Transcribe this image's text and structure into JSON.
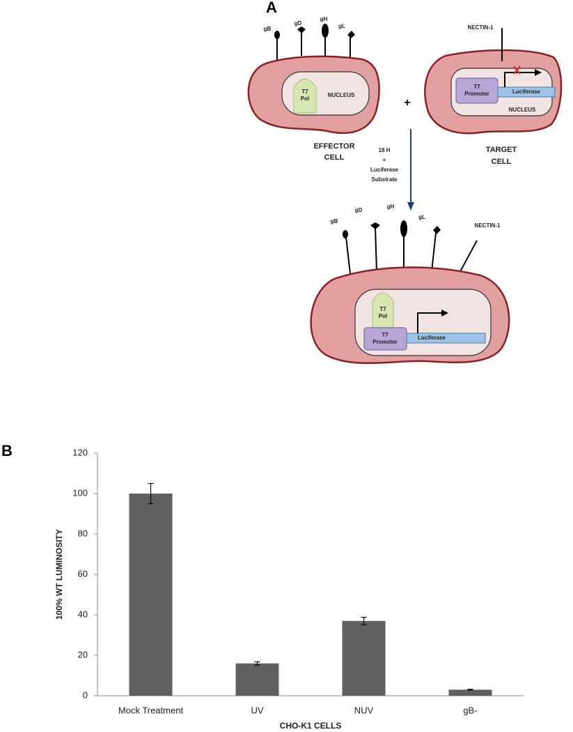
{
  "panel_labels": [
    "A",
    "B"
  ],
  "diagram": {
    "effector_cell": {
      "glycoproteins": [
        "gB",
        "gD",
        "gH",
        "gL"
      ],
      "polymerase": [
        "T7",
        "Pol"
      ],
      "nucleus": "NUCLEUS",
      "caption": [
        "EFFECTOR",
        "CELL"
      ]
    },
    "plus": "+",
    "target_cell": {
      "receptor": "NECTIN-1",
      "promoter": [
        "T7",
        "Promoter"
      ],
      "reporter": "Luciferase",
      "nucleus": "NUCLEUS",
      "caption": [
        "TARGET",
        "CELL"
      ]
    },
    "step": [
      "18 H",
      "+",
      "Luciferase",
      "Substrate"
    ],
    "fused_cell": {
      "glycoproteins": [
        "gB",
        "gD",
        "gH",
        "gL"
      ],
      "receptor": "NECTIN-1",
      "polymerase": [
        "T7",
        "Pol"
      ],
      "promoter": [
        "T7",
        "Promoter"
      ],
      "reporter": "Luciferase"
    }
  },
  "chart_data": {
    "type": "bar",
    "x_label": "CHO-K1 CELLS",
    "y_label": "100% WT LUMINOSITY",
    "categories": [
      "Mock Treatment",
      "UV",
      "NUV",
      "gB-"
    ],
    "values": [
      100,
      16,
      37,
      3
    ],
    "errors": [
      5,
      0.8,
      1.8,
      0.2
    ],
    "color": "#606060",
    "ylim": [
      0,
      120
    ],
    "yticks": [
      0,
      20,
      40,
      60,
      80,
      100,
      120
    ]
  }
}
